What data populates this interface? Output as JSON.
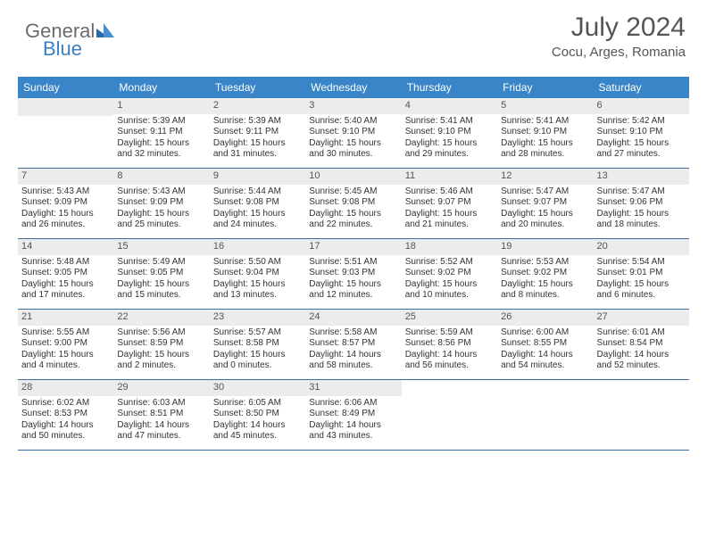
{
  "brand": {
    "part1": "General",
    "part2": "Blue"
  },
  "title": "July 2024",
  "location": "Cocu, Arges, Romania",
  "style": {
    "header_bg": "#3a85c7",
    "header_text": "#ffffff",
    "daynum_bg": "#ececec",
    "week_border": "#3a6fa0",
    "page_bg": "#ffffff",
    "text_color": "#333333",
    "title_color": "#555555",
    "head_fontsize": 12,
    "cell_fontsize": 10
  },
  "weekdays": [
    "Sunday",
    "Monday",
    "Tuesday",
    "Wednesday",
    "Thursday",
    "Friday",
    "Saturday"
  ],
  "weeks": [
    [
      {
        "empty": true
      },
      {
        "day": "1",
        "sunrise": "5:39 AM",
        "sunset": "9:11 PM",
        "daylight": "15 hours and 32 minutes."
      },
      {
        "day": "2",
        "sunrise": "5:39 AM",
        "sunset": "9:11 PM",
        "daylight": "15 hours and 31 minutes."
      },
      {
        "day": "3",
        "sunrise": "5:40 AM",
        "sunset": "9:10 PM",
        "daylight": "15 hours and 30 minutes."
      },
      {
        "day": "4",
        "sunrise": "5:41 AM",
        "sunset": "9:10 PM",
        "daylight": "15 hours and 29 minutes."
      },
      {
        "day": "5",
        "sunrise": "5:41 AM",
        "sunset": "9:10 PM",
        "daylight": "15 hours and 28 minutes."
      },
      {
        "day": "6",
        "sunrise": "5:42 AM",
        "sunset": "9:10 PM",
        "daylight": "15 hours and 27 minutes."
      }
    ],
    [
      {
        "day": "7",
        "sunrise": "5:43 AM",
        "sunset": "9:09 PM",
        "daylight": "15 hours and 26 minutes."
      },
      {
        "day": "8",
        "sunrise": "5:43 AM",
        "sunset": "9:09 PM",
        "daylight": "15 hours and 25 minutes."
      },
      {
        "day": "9",
        "sunrise": "5:44 AM",
        "sunset": "9:08 PM",
        "daylight": "15 hours and 24 minutes."
      },
      {
        "day": "10",
        "sunrise": "5:45 AM",
        "sunset": "9:08 PM",
        "daylight": "15 hours and 22 minutes."
      },
      {
        "day": "11",
        "sunrise": "5:46 AM",
        "sunset": "9:07 PM",
        "daylight": "15 hours and 21 minutes."
      },
      {
        "day": "12",
        "sunrise": "5:47 AM",
        "sunset": "9:07 PM",
        "daylight": "15 hours and 20 minutes."
      },
      {
        "day": "13",
        "sunrise": "5:47 AM",
        "sunset": "9:06 PM",
        "daylight": "15 hours and 18 minutes."
      }
    ],
    [
      {
        "day": "14",
        "sunrise": "5:48 AM",
        "sunset": "9:05 PM",
        "daylight": "15 hours and 17 minutes."
      },
      {
        "day": "15",
        "sunrise": "5:49 AM",
        "sunset": "9:05 PM",
        "daylight": "15 hours and 15 minutes."
      },
      {
        "day": "16",
        "sunrise": "5:50 AM",
        "sunset": "9:04 PM",
        "daylight": "15 hours and 13 minutes."
      },
      {
        "day": "17",
        "sunrise": "5:51 AM",
        "sunset": "9:03 PM",
        "daylight": "15 hours and 12 minutes."
      },
      {
        "day": "18",
        "sunrise": "5:52 AM",
        "sunset": "9:02 PM",
        "daylight": "15 hours and 10 minutes."
      },
      {
        "day": "19",
        "sunrise": "5:53 AM",
        "sunset": "9:02 PM",
        "daylight": "15 hours and 8 minutes."
      },
      {
        "day": "20",
        "sunrise": "5:54 AM",
        "sunset": "9:01 PM",
        "daylight": "15 hours and 6 minutes."
      }
    ],
    [
      {
        "day": "21",
        "sunrise": "5:55 AM",
        "sunset": "9:00 PM",
        "daylight": "15 hours and 4 minutes."
      },
      {
        "day": "22",
        "sunrise": "5:56 AM",
        "sunset": "8:59 PM",
        "daylight": "15 hours and 2 minutes."
      },
      {
        "day": "23",
        "sunrise": "5:57 AM",
        "sunset": "8:58 PM",
        "daylight": "15 hours and 0 minutes."
      },
      {
        "day": "24",
        "sunrise": "5:58 AM",
        "sunset": "8:57 PM",
        "daylight": "14 hours and 58 minutes."
      },
      {
        "day": "25",
        "sunrise": "5:59 AM",
        "sunset": "8:56 PM",
        "daylight": "14 hours and 56 minutes."
      },
      {
        "day": "26",
        "sunrise": "6:00 AM",
        "sunset": "8:55 PM",
        "daylight": "14 hours and 54 minutes."
      },
      {
        "day": "27",
        "sunrise": "6:01 AM",
        "sunset": "8:54 PM",
        "daylight": "14 hours and 52 minutes."
      }
    ],
    [
      {
        "day": "28",
        "sunrise": "6:02 AM",
        "sunset": "8:53 PM",
        "daylight": "14 hours and 50 minutes."
      },
      {
        "day": "29",
        "sunrise": "6:03 AM",
        "sunset": "8:51 PM",
        "daylight": "14 hours and 47 minutes."
      },
      {
        "day": "30",
        "sunrise": "6:05 AM",
        "sunset": "8:50 PM",
        "daylight": "14 hours and 45 minutes."
      },
      {
        "day": "31",
        "sunrise": "6:06 AM",
        "sunset": "8:49 PM",
        "daylight": "14 hours and 43 minutes."
      },
      {
        "empty": true,
        "nobar": true
      },
      {
        "empty": true,
        "nobar": true
      },
      {
        "empty": true,
        "nobar": true
      }
    ]
  ],
  "labels": {
    "sunrise": "Sunrise:",
    "sunset": "Sunset:",
    "daylight": "Daylight:"
  }
}
